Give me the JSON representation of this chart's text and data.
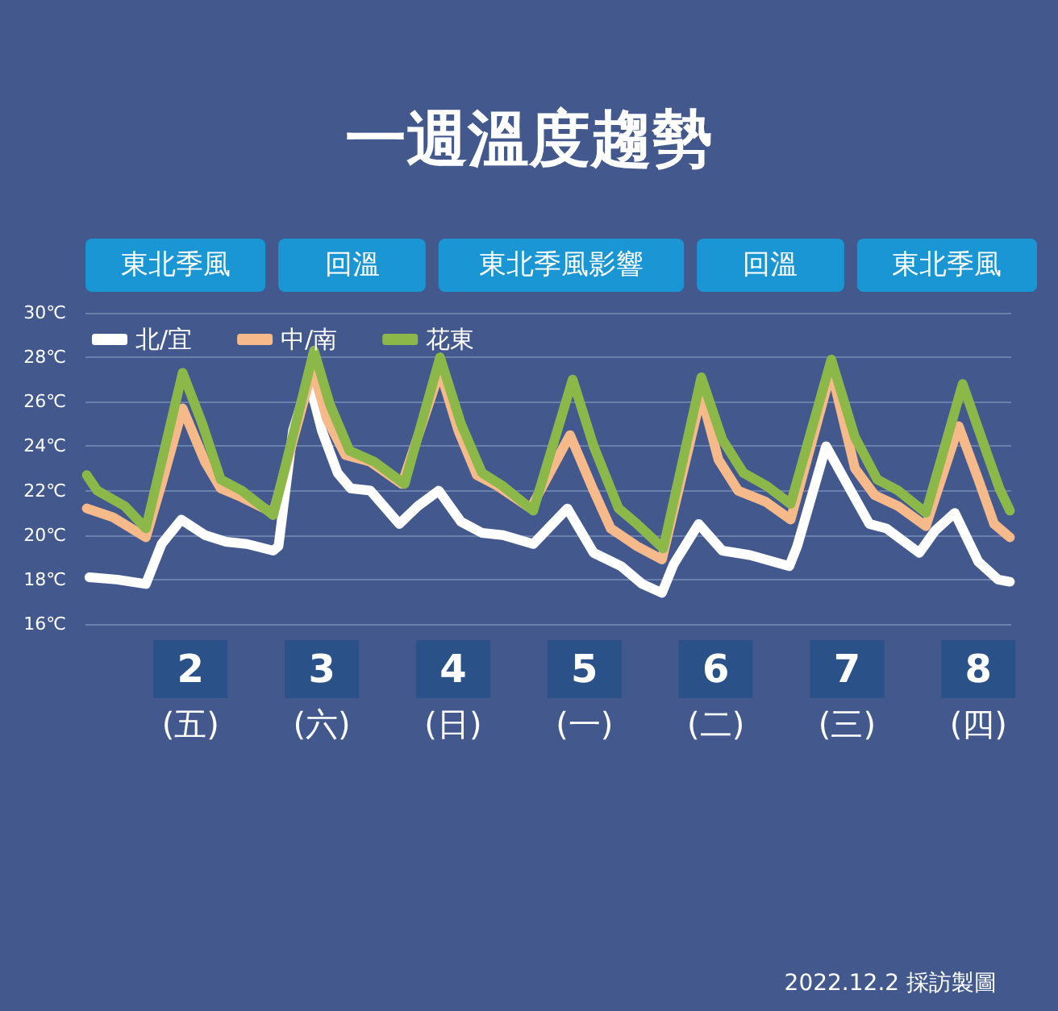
{
  "chart_data": {
    "type": "line",
    "title": "一週溫度趨勢",
    "xlim": [
      1.2,
      8.25
    ],
    "xticks": [
      {
        "value": 2,
        "label": "2\n(五)"
      },
      {
        "value": 3,
        "label": "3\n(六)"
      },
      {
        "value": 4,
        "label": "4\n(日)"
      },
      {
        "value": 5,
        "label": "5\n(一)"
      },
      {
        "value": 6,
        "label": "6\n(二)"
      },
      {
        "value": 7,
        "label": "7\n(三)"
      },
      {
        "value": 8,
        "label": "8\n(四)"
      }
    ],
    "ylim": [
      16,
      30
    ],
    "yticks": [
      {
        "value": 16,
        "label": "16℃"
      },
      {
        "value": 18,
        "label": "18℃"
      },
      {
        "value": 20,
        "label": "20℃"
      },
      {
        "value": 22,
        "label": "22℃"
      },
      {
        "value": 24,
        "label": "24℃"
      },
      {
        "value": 26,
        "label": "26℃"
      },
      {
        "value": 28,
        "label": "28℃"
      },
      {
        "value": 30,
        "label": "30℃"
      }
    ],
    "grid": "y",
    "legend": "top left",
    "marker": "none",
    "line_style": "solid",
    "series": [
      {
        "name": "北/宜",
        "color": "#ffffff",
        "x": [
          1.23,
          1.44,
          1.66,
          1.78,
          1.93,
          2.11,
          2.27,
          2.43,
          2.63,
          2.67,
          2.78,
          2.9,
          3.0,
          3.12,
          3.22,
          3.37,
          3.59,
          3.73,
          3.89,
          4.06,
          4.22,
          4.38,
          4.61,
          4.87,
          5.07,
          5.28,
          5.44,
          5.59,
          5.68,
          5.87,
          6.05,
          6.26,
          6.56,
          6.62,
          6.84,
          7.0,
          7.17,
          7.3,
          7.55,
          7.67,
          7.82,
          8.0,
          8.15,
          8.24
        ],
        "values": [
          18.1,
          18.0,
          17.8,
          19.6,
          20.7,
          20.0,
          19.7,
          19.6,
          19.3,
          19.5,
          24.7,
          27.0,
          24.7,
          22.8,
          22.1,
          22.0,
          20.5,
          21.3,
          22.0,
          20.6,
          20.1,
          20.0,
          19.6,
          21.2,
          19.2,
          18.6,
          17.8,
          17.4,
          18.7,
          20.5,
          19.3,
          19.1,
          18.6,
          19.5,
          24.0,
          22.3,
          20.5,
          20.3,
          19.2,
          20.2,
          21.0,
          18.8,
          18.0,
          17.9
        ]
      },
      {
        "name": "中/南",
        "color": "#f6b98a",
        "x": [
          1.21,
          1.41,
          1.66,
          1.78,
          1.94,
          2.11,
          2.23,
          2.39,
          2.63,
          2.93,
          3.04,
          3.18,
          3.37,
          3.61,
          3.9,
          4.04,
          4.18,
          4.34,
          4.59,
          4.89,
          5.07,
          5.2,
          5.4,
          5.59,
          5.89,
          6.02,
          6.17,
          6.38,
          6.57,
          6.88,
          7.06,
          7.21,
          7.39,
          7.6,
          7.85,
          8.0,
          8.12,
          8.24
        ],
        "values": [
          21.2,
          20.8,
          19.9,
          22.3,
          25.7,
          23.3,
          22.1,
          21.7,
          21.0,
          27.5,
          25.2,
          23.6,
          23.3,
          22.3,
          27.4,
          24.7,
          22.7,
          22.2,
          21.2,
          24.5,
          22.0,
          20.3,
          19.5,
          18.9,
          26.3,
          23.4,
          22.0,
          21.5,
          20.7,
          27.4,
          23.0,
          21.8,
          21.3,
          20.4,
          24.9,
          22.5,
          20.5,
          19.9
        ]
      },
      {
        "name": "花東",
        "color": "#8cb84a",
        "x": [
          1.21,
          1.29,
          1.5,
          1.66,
          1.94,
          2.09,
          2.23,
          2.39,
          2.63,
          2.94,
          3.06,
          3.21,
          3.4,
          3.63,
          3.9,
          4.06,
          4.22,
          4.38,
          4.61,
          4.91,
          5.07,
          5.26,
          5.4,
          5.6,
          5.89,
          6.05,
          6.21,
          6.39,
          6.57,
          6.88,
          7.06,
          7.23,
          7.39,
          7.6,
          7.88,
          8.04,
          8.16,
          8.24
        ],
        "values": [
          22.7,
          22.0,
          21.3,
          20.3,
          27.3,
          25.0,
          22.5,
          22.0,
          20.9,
          28.3,
          25.9,
          23.8,
          23.3,
          22.3,
          28.0,
          25.0,
          22.8,
          22.2,
          21.1,
          27.0,
          24.0,
          21.2,
          20.5,
          19.4,
          27.1,
          24.3,
          22.8,
          22.2,
          21.4,
          27.9,
          24.4,
          22.5,
          22.0,
          21.0,
          26.8,
          24.1,
          22.1,
          21.1
        ]
      }
    ],
    "annotations": [
      "東北季風",
      "回溫",
      "東北季風影響",
      "回溫",
      "東北季風",
      "2022.12.2 採訪製圖"
    ]
  }
}
